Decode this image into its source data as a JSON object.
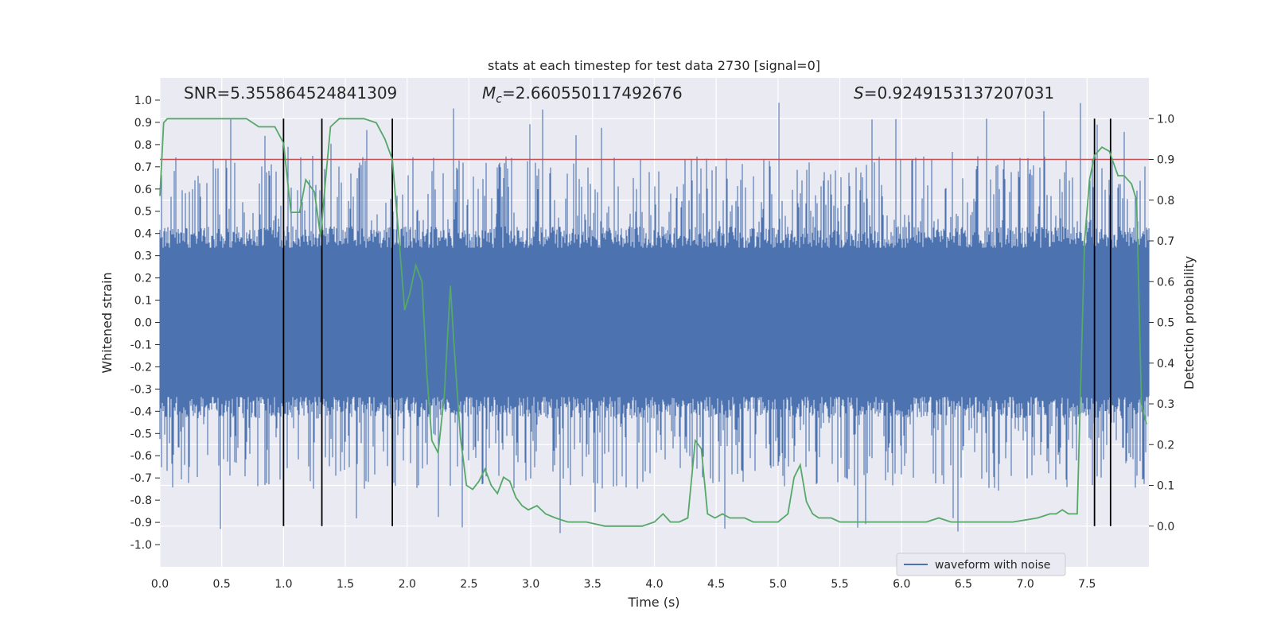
{
  "chart_data": {
    "type": "line",
    "title": "stats at each timestep for test data 2730 [signal=0]",
    "xlabel": "Time (s)",
    "ylabel": "Whitened strain",
    "y2label": "Detection probability",
    "xlim": [
      0,
      8
    ],
    "ylim": [
      -1.1,
      1.1
    ],
    "y2lim": [
      -0.1,
      1.1
    ],
    "x_ticks": [
      "0.0",
      "0.5",
      "1.0",
      "1.5",
      "2.0",
      "2.5",
      "3.0",
      "3.5",
      "4.0",
      "4.5",
      "5.0",
      "5.5",
      "6.0",
      "6.5",
      "7.0",
      "7.5"
    ],
    "y_ticks": [
      "1.0",
      "0.9",
      "0.8",
      "0.7",
      "0.6",
      "0.5",
      "0.4",
      "0.3",
      "0.2",
      "0.1",
      "0.0",
      "-0.1",
      "-0.2",
      "-0.3",
      "-0.4",
      "-0.5",
      "-0.6",
      "-0.7",
      "-0.8",
      "-0.9",
      "-1.0"
    ],
    "y2_ticks": [
      "1.0",
      "0.9",
      "0.8",
      "0.7",
      "0.6",
      "0.5",
      "0.4",
      "0.3",
      "0.2",
      "0.1",
      "0.0"
    ],
    "grid": true,
    "annotations": [
      {
        "label": "SNR=5.355864524841309",
        "x": 0.2
      },
      {
        "label": "2.660550117492676",
        "prefix": "M",
        "sub": "c",
        "x": 2.6
      },
      {
        "label": "=0.9249153137207031",
        "prefix": "S",
        "x": 5.6
      }
    ],
    "threshold": {
      "value": 0.9,
      "color": "#c44e52"
    },
    "event_lines_x": [
      1.0,
      1.31,
      1.88,
      7.56,
      7.69
    ],
    "legend": {
      "position": "bottom-right",
      "entries": [
        "waveform with noise"
      ]
    },
    "series": [
      {
        "name": "waveform with noise",
        "color": "#4c72b0",
        "kind": "noise",
        "envelope": 0.42,
        "spike_max": 1.0
      },
      {
        "color": "#55a868",
        "axis": "right",
        "x": [
          0.0,
          0.03,
          0.06,
          0.12,
          0.3,
          0.5,
          0.7,
          0.8,
          0.85,
          0.93,
          1.0,
          1.06,
          1.13,
          1.18,
          1.25,
          1.3,
          1.34,
          1.38,
          1.45,
          1.55,
          1.65,
          1.75,
          1.82,
          1.88,
          1.93,
          1.98,
          2.02,
          2.07,
          2.12,
          2.16,
          2.2,
          2.25,
          2.3,
          2.35,
          2.38,
          2.43,
          2.48,
          2.53,
          2.58,
          2.63,
          2.68,
          2.73,
          2.78,
          2.83,
          2.88,
          2.93,
          2.98,
          3.05,
          3.12,
          3.2,
          3.3,
          3.45,
          3.6,
          3.78,
          3.9,
          4.0,
          4.07,
          4.13,
          4.2,
          4.27,
          4.33,
          4.38,
          4.43,
          4.49,
          4.55,
          4.61,
          4.67,
          4.73,
          4.8,
          5.0,
          5.08,
          5.13,
          5.18,
          5.23,
          5.28,
          5.33,
          5.38,
          5.43,
          5.5,
          5.7,
          5.9,
          6.0,
          6.1,
          6.2,
          6.3,
          6.4,
          6.55,
          6.7,
          6.9,
          7.1,
          7.2,
          7.25,
          7.3,
          7.35,
          7.42,
          7.48,
          7.52,
          7.56,
          7.62,
          7.68,
          7.75,
          7.8,
          7.86,
          7.9,
          7.94,
          7.98
        ],
        "y": [
          0.81,
          0.99,
          1.0,
          1.0,
          1.0,
          1.0,
          1.0,
          0.98,
          0.98,
          0.98,
          0.94,
          0.77,
          0.77,
          0.85,
          0.82,
          0.71,
          0.85,
          0.98,
          1.0,
          1.0,
          1.0,
          0.99,
          0.95,
          0.9,
          0.72,
          0.53,
          0.57,
          0.64,
          0.6,
          0.37,
          0.21,
          0.18,
          0.32,
          0.59,
          0.44,
          0.22,
          0.1,
          0.09,
          0.11,
          0.14,
          0.1,
          0.08,
          0.12,
          0.11,
          0.07,
          0.05,
          0.04,
          0.05,
          0.03,
          0.02,
          0.01,
          0.01,
          0.0,
          0.0,
          0.0,
          0.01,
          0.03,
          0.01,
          0.01,
          0.02,
          0.21,
          0.19,
          0.03,
          0.02,
          0.03,
          0.02,
          0.02,
          0.02,
          0.01,
          0.01,
          0.03,
          0.12,
          0.15,
          0.06,
          0.03,
          0.02,
          0.02,
          0.02,
          0.01,
          0.01,
          0.01,
          0.01,
          0.01,
          0.01,
          0.02,
          0.01,
          0.01,
          0.01,
          0.01,
          0.02,
          0.03,
          0.03,
          0.04,
          0.03,
          0.03,
          0.7,
          0.85,
          0.91,
          0.93,
          0.92,
          0.86,
          0.86,
          0.84,
          0.8,
          0.3,
          0.25
        ]
      }
    ]
  }
}
